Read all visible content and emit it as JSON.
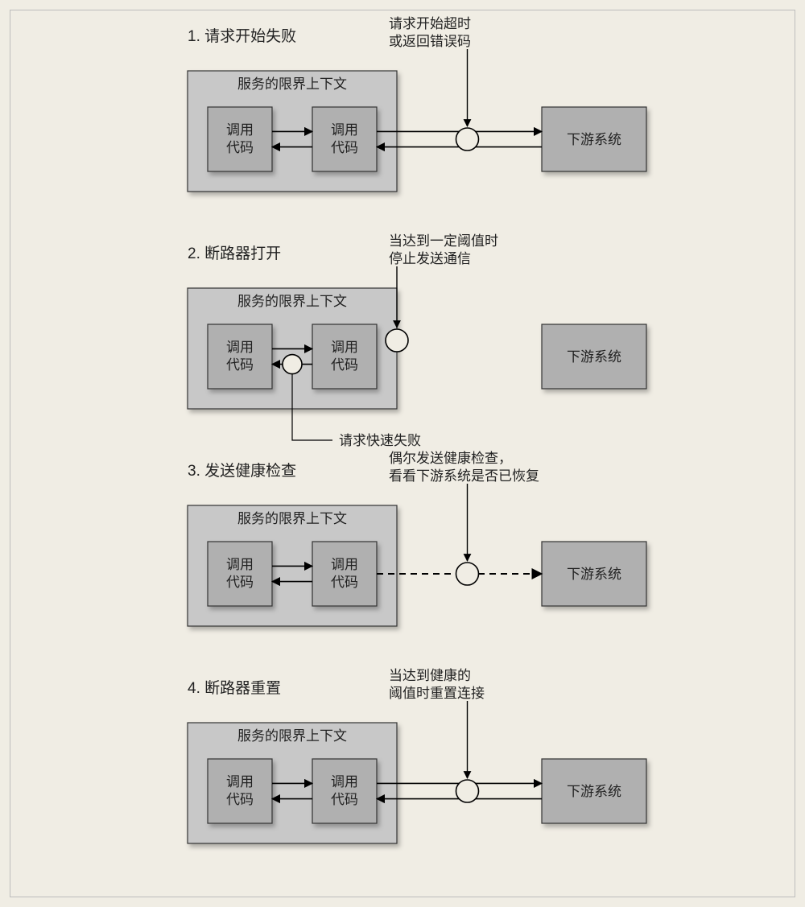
{
  "diagram": {
    "type": "flowchart",
    "background_color": "#f0ede4",
    "frame_border_color": "#bdbdbd",
    "context_fill": "#c8c8c8",
    "context_stroke": "#333333",
    "box_fill": "#b0b0b0",
    "box_stroke": "#333333",
    "shadow_color": "rgba(0,0,0,0.25)",
    "arrow_stroke": "#000000",
    "circle_stroke": "#000000",
    "text_color": "#222222",
    "title_fontsize": 19,
    "annot_fontsize": 17,
    "box_fontsize": 17,
    "context_label": "服务的限界上下文",
    "caller_label_l1": "调用",
    "caller_label_l2": "代码",
    "downstream_label": "下游系统",
    "panels": [
      {
        "title": "1. 请求开始失败",
        "annotation_top": [
          "请求开始超时",
          "或返回错误码"
        ],
        "top_circle": true,
        "bottom_circle": false,
        "arrows_to_downstream": "solid-both",
        "annotation_bottom": null
      },
      {
        "title": "2. 断路器打开",
        "annotation_top": [
          "当达到一定阈值时",
          "停止发送通信"
        ],
        "top_circle": "edge",
        "bottom_circle": true,
        "arrows_to_downstream": "none",
        "annotation_bottom": "请求快速失败"
      },
      {
        "title": "3. 发送健康检查",
        "annotation_top": [
          "偶尔发送健康检查，",
          "看看下游系统是否已恢复"
        ],
        "top_circle": true,
        "bottom_circle": false,
        "arrows_to_downstream": "dashed-one",
        "annotation_bottom": null
      },
      {
        "title": "4. 断路器重置",
        "annotation_top": [
          "当达到健康的",
          "阈值时重置连接"
        ],
        "top_circle": true,
        "bottom_circle": false,
        "arrows_to_downstream": "solid-both",
        "annotation_bottom": null
      }
    ]
  }
}
